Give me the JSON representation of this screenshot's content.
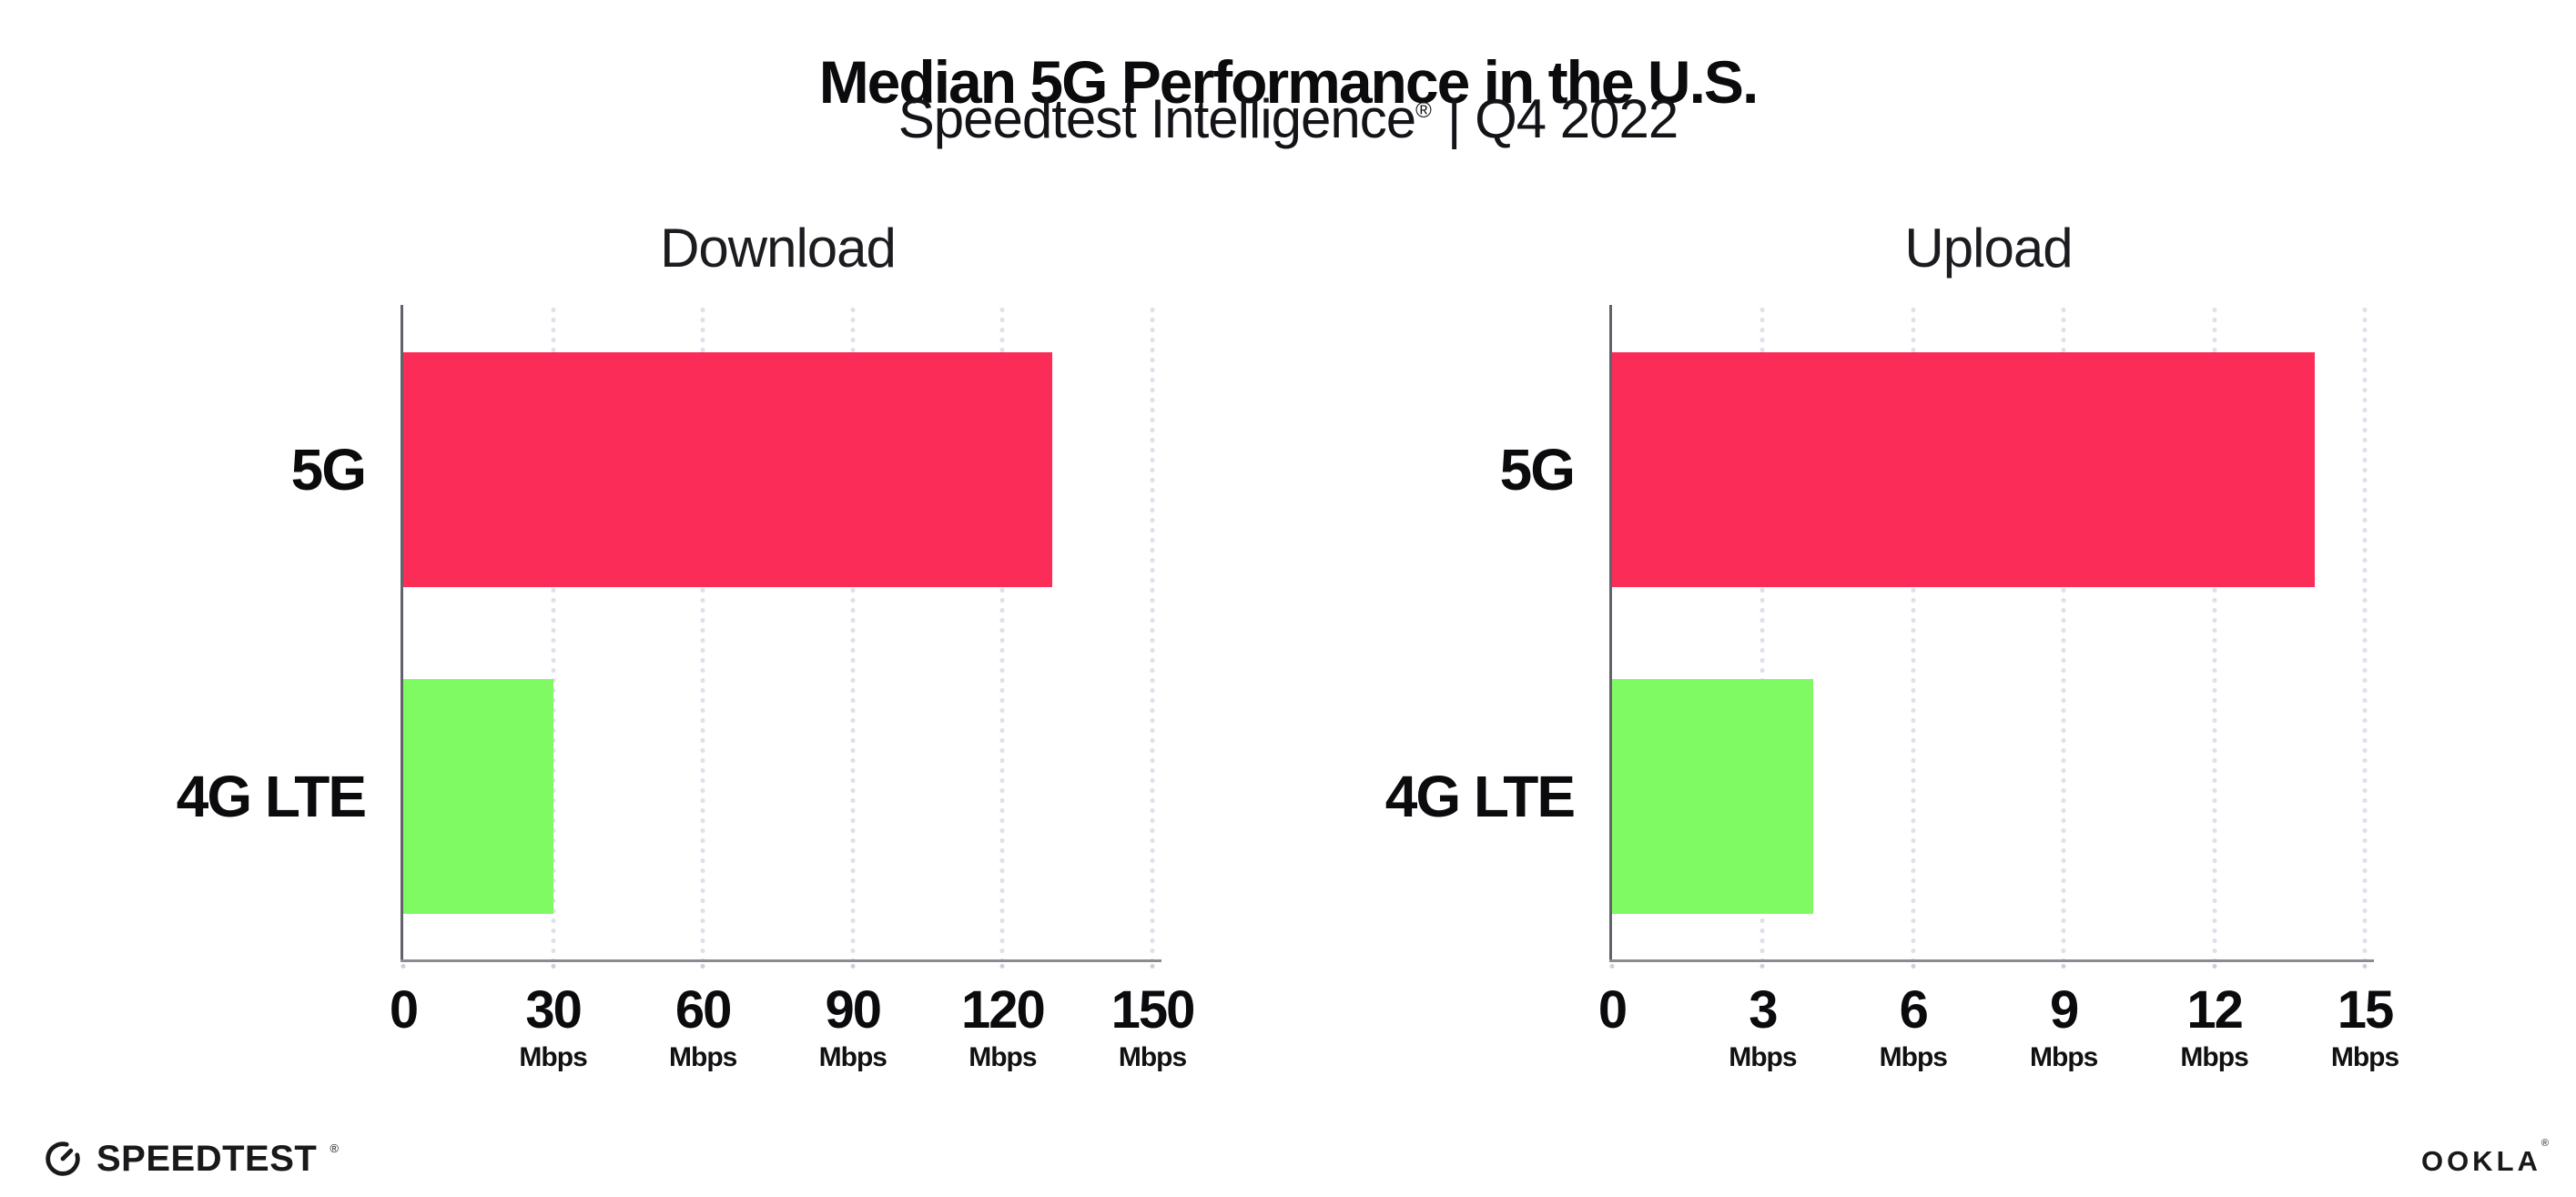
{
  "header": {
    "title": "Median 5G Performance in the U.S.",
    "subtitle_brand": "Speedtest Intelligence",
    "subtitle_mark": "®",
    "subtitle_rest": "| Q4 2022"
  },
  "colors": {
    "bar_5g": "#fb2c58",
    "bar_4g_lte": "#80fa63",
    "grid_dot": "#e0e0ea",
    "axis_y": "#62626b",
    "axis_x": "#8b8b92",
    "text": "#0b0b0e"
  },
  "chart_data": [
    {
      "type": "bar",
      "orientation": "horizontal",
      "title": "Download",
      "categories": [
        "5G",
        "4G LTE"
      ],
      "values": [
        130,
        30
      ],
      "unit": "Mbps",
      "xlim": [
        0,
        150
      ],
      "xticks": [
        0,
        30,
        60,
        90,
        120,
        150
      ],
      "bar_colors": [
        "#fb2c58",
        "#80fa63"
      ],
      "grid": "vertical-dotted",
      "legend": "none"
    },
    {
      "type": "bar",
      "orientation": "horizontal",
      "title": "Upload",
      "categories": [
        "5G",
        "4G LTE"
      ],
      "values": [
        14,
        4
      ],
      "unit": "Mbps",
      "xlim": [
        0,
        15
      ],
      "xticks": [
        0,
        3,
        6,
        9,
        12,
        15
      ],
      "bar_colors": [
        "#fb2c58",
        "#80fa63"
      ],
      "grid": "vertical-dotted",
      "legend": "none"
    }
  ],
  "footer": {
    "speedtest_label": "SPEEDTEST",
    "speedtest_mark": "®",
    "ookla_label": "OOKLA",
    "ookla_mark": "®"
  }
}
